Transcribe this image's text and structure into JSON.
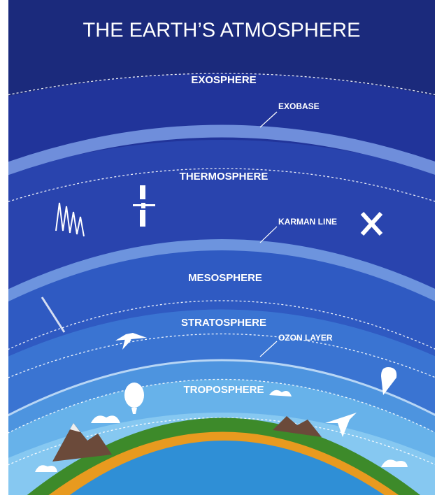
{
  "title": "THE EARTH’S ATMOSPHERE",
  "layers": [
    "EXOSPHERE",
    "THERMOSPHERE",
    "MESOSPHERE",
    "STRATOSPHERE",
    "TROPOSPHERE"
  ],
  "boundaries": [
    "EXOBASE",
    "KARMAN LINE",
    "OZON LAYER"
  ]
}
